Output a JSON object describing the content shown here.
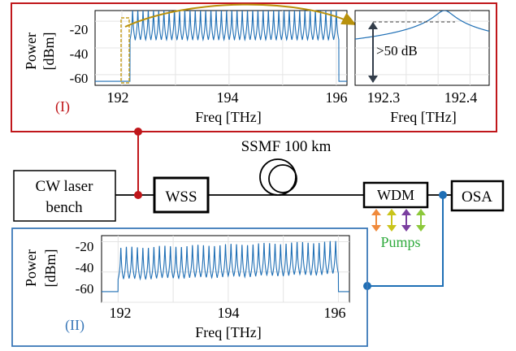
{
  "panel_top": {
    "tag": "(I)",
    "main": {
      "ylabel_line1": "Power",
      "ylabel_line2": "[dBm]",
      "xlabel": "Freq [THz]",
      "xticks": [
        "192",
        "194",
        "196"
      ],
      "yticks": [
        "-20",
        "-40",
        "-60"
      ]
    },
    "zoom": {
      "xlabel": "Freq [THz]",
      "xticks": [
        "192.3",
        "192.4"
      ],
      "annotation": ">50 dB"
    }
  },
  "panel_bottom": {
    "tag": "(II)",
    "ylabel_line1": "Power",
    "ylabel_line2": "[dBm]",
    "xlabel": "Freq [THz]",
    "xticks": [
      "192",
      "194",
      "196"
    ],
    "yticks": [
      "-20",
      "-40",
      "-60"
    ]
  },
  "setup": {
    "cw_laser_line1": "CW laser",
    "cw_laser_line2": "bench",
    "wss": "WSS",
    "fiber": "SSMF 100 km",
    "wdm": "WDM",
    "osa": "OSA",
    "pumps": "Pumps"
  },
  "colors": {
    "trace": "#1f6fb5",
    "top_frame": "#c0171b",
    "bottom_frame": "#3a78b8",
    "pumps": "#2eaa3c",
    "zoom_arrow": "#b8910c",
    "pump_arrows": [
      "#f08a3c",
      "#c9c41a",
      "#7b3fa0",
      "#8cc83a"
    ]
  },
  "chart_data": [
    {
      "type": "line",
      "name_ref": "panel I main spectrum",
      "xlim": [
        191.5,
        196.2
      ],
      "ylim": [
        -68,
        -12
      ],
      "x_range_signal": [
        192.2,
        196.0
      ],
      "channel_count": 40,
      "peak_dbm": -12,
      "floor_dbm": -62,
      "outside_floor_dbm": -65
    },
    {
      "type": "line",
      "name_ref": "panel I zoom",
      "xlim": [
        192.22,
        192.43
      ],
      "ylim": [
        -68,
        -12
      ],
      "peak_x": 192.36,
      "peak_dbm": -12,
      "floor_dbm": -65,
      "extinction_db": 50
    },
    {
      "type": "line",
      "name_ref": "panel II spectrum",
      "xlim": [
        191.7,
        196.2
      ],
      "ylim": [
        -60,
        -16
      ],
      "x_range_signal": [
        192.05,
        195.95
      ],
      "channel_count": 40,
      "peak_dbm_start": -24,
      "peak_dbm_end": -20,
      "floor_dbm": -51,
      "outside_floor_dbm": -53
    }
  ]
}
